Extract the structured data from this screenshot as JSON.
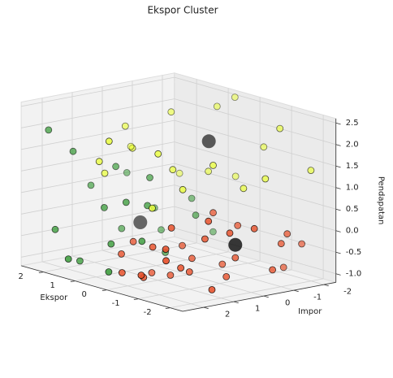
{
  "chart_data": {
    "type": "scatter3d",
    "title": "Ekspor Cluster",
    "xlabel": "Ekspor",
    "ylabel": "Impor",
    "zlabel": "Pendapatan",
    "xlim": [
      -2.4,
      2.7
    ],
    "ylim": [
      -2.4,
      2.7
    ],
    "zlim": [
      -1.2,
      2.6
    ],
    "xticks": [
      -2,
      -1,
      0,
      1,
      2
    ],
    "yticks": [
      -2,
      -1,
      0,
      1,
      2
    ],
    "zticks": [
      -1.0,
      -0.5,
      0.0,
      0.5,
      1.0,
      1.5,
      2.0,
      2.5
    ],
    "grid": true,
    "series": [
      {
        "color": "#1f8f1f",
        "x": [
          2.5,
          2.2,
          1.8,
          2.4,
          1.5,
          1.2,
          2.0,
          1.0,
          0.8,
          1.6,
          2.1,
          1.3,
          0.9,
          1.7,
          0.5,
          1.1,
          2.3,
          1.4,
          0.7,
          1.9,
          0.6,
          1.0
        ],
        "y": [
          2.0,
          1.5,
          0.5,
          -0.5,
          1.2,
          0.0,
          -1.0,
          1.5,
          0.5,
          -0.8,
          2.2,
          -1.5,
          -0.2,
          1.8,
          1.0,
          -2.0,
          0.8,
          2.5,
          -1.0,
          0.2,
          2.0,
          1.0
        ],
        "z": [
          1.9,
          1.4,
          1.0,
          0.6,
          0.2,
          0.8,
          -0.2,
          -0.5,
          0.3,
          -0.6,
          -0.3,
          0.1,
          -0.9,
          -1.0,
          -0.4,
          -0.7,
          0.5,
          -0.8,
          -0.1,
          -0.5,
          -1.0,
          0.4
        ]
      },
      {
        "color": "#eaff33",
        "x": [
          1.5,
          0.5,
          -0.5,
          -1.2,
          0.8,
          0.0,
          1.0,
          -0.8,
          0.3,
          -1.5,
          1.8,
          -0.2,
          0.6,
          -1.0,
          1.2,
          0.2,
          -0.6,
          0.9,
          -1.8,
          0.4,
          1.4,
          -0.3
        ],
        "y": [
          0.5,
          -1.5,
          -2.0,
          -1.8,
          1.0,
          0.5,
          -0.5,
          0.0,
          -1.0,
          -1.0,
          0.0,
          1.2,
          -2.2,
          -0.8,
          1.5,
          -1.8,
          0.8,
          2.0,
          -2.2,
          2.2,
          -1.2,
          1.5
        ],
        "z": [
          2.0,
          2.4,
          1.6,
          2.2,
          1.7,
          1.3,
          2.3,
          1.5,
          1.0,
          1.2,
          1.4,
          1.8,
          2.5,
          0.9,
          1.1,
          0.8,
          1.0,
          1.5,
          1.3,
          2.1,
          0.7,
          0.6
        ]
      },
      {
        "color": "#e8502a",
        "x": [
          -1.5,
          -2.0,
          -1.0,
          -0.5,
          -1.8,
          -1.2,
          0.0,
          -0.8,
          -2.2,
          -1.4,
          -0.3,
          -1.6,
          -1.1,
          -0.6,
          -1.9,
          -0.9,
          0.2,
          -1.3,
          -2.1,
          -0.4,
          -1.7,
          -1.0,
          -0.2,
          -1.5,
          -0.7,
          -2.0,
          -1.2,
          0.3,
          -0.9,
          -1.6
        ],
        "y": [
          0.0,
          -1.0,
          1.0,
          2.0,
          0.5,
          1.5,
          1.2,
          0.0,
          -0.5,
          2.2,
          0.5,
          -1.5,
          -0.5,
          1.8,
          1.2,
          2.5,
          2.0,
          0.8,
          0.0,
          1.0,
          -2.0,
          1.6,
          2.4,
          0.3,
          0.6,
          -1.2,
          2.0,
          1.5,
          -0.2,
          1.0
        ],
        "z": [
          -0.5,
          -0.2,
          -0.8,
          -0.9,
          0.2,
          -0.6,
          -1.0,
          0.4,
          -0.7,
          -0.3,
          -0.4,
          -0.9,
          0.1,
          -0.2,
          -1.0,
          -0.7,
          -0.5,
          0.0,
          0.3,
          -1.0,
          -0.4,
          0.3,
          -0.8,
          -0.9,
          -0.6,
          0.0,
          -0.1,
          -0.3,
          -0.8,
          0.5
        ]
      },
      {
        "color": "#000000",
        "size": "large",
        "x": [
          1.5,
          0.0,
          -1.5
        ],
        "y": [
          0.0,
          -0.7,
          0.0
        ],
        "z": [
          -0.3,
          1.8,
          -0.2
        ]
      }
    ]
  }
}
